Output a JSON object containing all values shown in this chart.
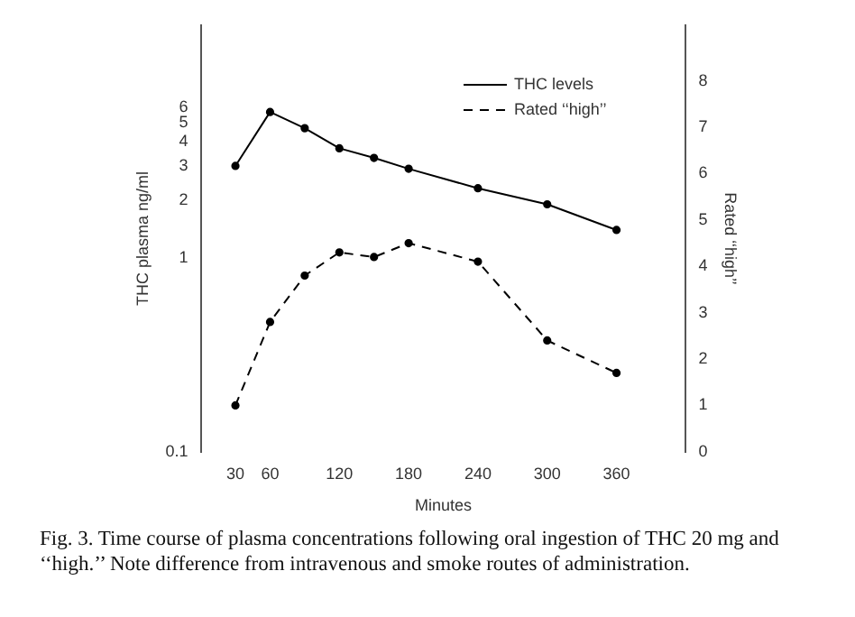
{
  "chart_data": {
    "type": "line",
    "xlabel": "Minutes",
    "ylabel": "THC plasma ng/ml",
    "y2label": "Rated ‘‘high’’",
    "x": [
      30,
      60,
      90,
      120,
      150,
      180,
      240,
      300,
      360
    ],
    "xlim": [
      0,
      420
    ],
    "xticks": [
      30,
      60,
      120,
      180,
      240,
      300,
      360
    ],
    "log": "y",
    "ylim": [
      0.1,
      16
    ],
    "yticks": [
      0.1,
      1,
      2,
      3,
      4,
      5,
      6
    ],
    "y2lim": [
      0,
      9.2
    ],
    "y2ticks": [
      0,
      1,
      2,
      3,
      4,
      5,
      6,
      7,
      8
    ],
    "series": [
      {
        "name": "THC levels",
        "color": "#000000",
        "line_style": "solid",
        "values": [
          3.0,
          5.7,
          4.7,
          3.7,
          3.3,
          2.9,
          2.3,
          1.9,
          1.4
        ]
      },
      {
        "name": "Rated ‘‘high’’",
        "color": "#000000",
        "line_style": "dashed",
        "axis": "y2",
        "values": [
          1.0,
          2.8,
          3.8,
          4.3,
          4.2,
          4.5,
          4.1,
          2.4,
          1.7
        ]
      }
    ],
    "marker": "circle",
    "grid": false,
    "legend": "top right",
    "annotations": [
      "Fig. 3. Time course of plasma concentrations following oral ingestion of THC 20 mg and ‘‘high.’’ Note difference from intravenous and smoke routes of administration."
    ]
  }
}
